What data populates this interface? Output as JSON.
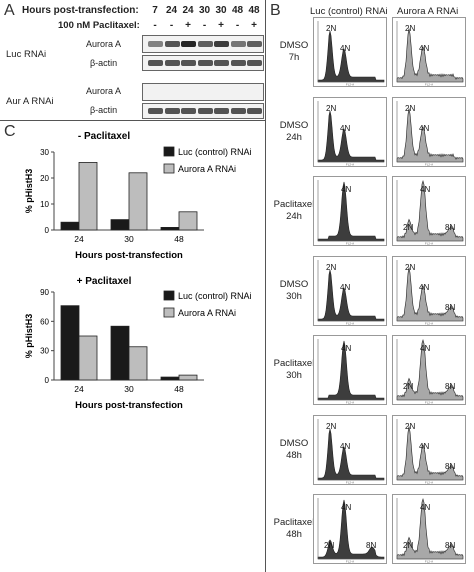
{
  "panels": {
    "a": "A",
    "b": "B",
    "c": "C"
  },
  "panel_a": {
    "hours_label": "Hours post-transfection:",
    "hours": [
      "7",
      "24",
      "24",
      "30",
      "30",
      "48",
      "48"
    ],
    "pac_label": "100 nM Paclitaxel:",
    "pac": [
      "-",
      "-",
      "+",
      "-",
      "+",
      "-",
      "+"
    ],
    "group1_label": "Luc RNAi",
    "group2_label": "Aur A RNAi",
    "g1_rows": [
      "Aurora A",
      "β-actin"
    ],
    "g2_rows": [
      "Aurora A",
      "β-actin"
    ],
    "band_intensity": {
      "g1_aurora": [
        0.55,
        0.75,
        0.95,
        0.7,
        0.85,
        0.6,
        0.7
      ],
      "g1_actin": [
        0.75,
        0.75,
        0.75,
        0.75,
        0.75,
        0.75,
        0.75
      ],
      "g2_aurora": [
        0,
        0,
        0,
        0,
        0,
        0,
        0
      ],
      "g2_actin": [
        0.75,
        0.75,
        0.75,
        0.75,
        0.75,
        0.75,
        0.75
      ]
    }
  },
  "panel_b": {
    "col_headers": [
      "Luc (control) RNAi",
      "Aurora A RNAi"
    ],
    "axis_tiny": "FL2-A",
    "rows": [
      {
        "label": [
          "DMSO",
          "7h"
        ],
        "luc": {
          "peaks": [
            "2N",
            "4N"
          ]
        },
        "aur": {
          "peaks": [
            "2N",
            "4N"
          ]
        }
      },
      {
        "label": [
          "DMSO",
          "24h"
        ],
        "luc": {
          "peaks": [
            "2N",
            "4N"
          ]
        },
        "aur": {
          "peaks": [
            "2N",
            "4N"
          ]
        }
      },
      {
        "label": [
          "Paclitaxel",
          "24h"
        ],
        "luc": {
          "peaks": [
            "4N"
          ]
        },
        "aur": {
          "peaks": [
            "4N",
            "2N",
            "8N"
          ]
        }
      },
      {
        "label": [
          "DMSO",
          "30h"
        ],
        "luc": {
          "peaks": [
            "2N",
            "4N"
          ]
        },
        "aur": {
          "peaks": [
            "2N",
            "4N",
            "8N"
          ]
        }
      },
      {
        "label": [
          "Paclitaxel",
          "30h"
        ],
        "luc": {
          "peaks": [
            "4N"
          ]
        },
        "aur": {
          "peaks": [
            "4N",
            "2N",
            "8N"
          ]
        }
      },
      {
        "label": [
          "DMSO",
          "48h"
        ],
        "luc": {
          "peaks": [
            "2N",
            "4N"
          ]
        },
        "aur": {
          "peaks": [
            "2N",
            "4N",
            "8N"
          ]
        }
      },
      {
        "label": [
          "Paclitaxel",
          "48h"
        ],
        "luc": {
          "peaks": [
            "4N",
            "2N",
            "8N"
          ]
        },
        "aur": {
          "peaks": [
            "4N",
            "2N",
            "8N"
          ]
        }
      }
    ]
  },
  "chart_data": [
    {
      "type": "bar",
      "title": "- Paclitaxel",
      "categories": [
        "24",
        "30",
        "48"
      ],
      "xlabel": "Hours post-transfection",
      "ylabel": "% pHistH3",
      "ylim": [
        0,
        30
      ],
      "grid": false,
      "legend": "top-right",
      "series": [
        {
          "name": "Luc (control) RNAi",
          "color": "#1a1a1a",
          "values": [
            3,
            4,
            1
          ]
        },
        {
          "name": "Aurora A RNAi",
          "color": "#bdbdbd",
          "values": [
            26,
            22,
            7
          ]
        }
      ]
    },
    {
      "type": "bar",
      "title": "+ Paclitaxel",
      "categories": [
        "24",
        "30",
        "48"
      ],
      "xlabel": "Hours post-transfection",
      "ylabel": "% pHistH3",
      "ylim": [
        0,
        90
      ],
      "grid": false,
      "legend": "top-right",
      "series": [
        {
          "name": "Luc (control) RNAi",
          "color": "#1a1a1a",
          "values": [
            76,
            55,
            3
          ]
        },
        {
          "name": "Aurora A RNAi",
          "color": "#bdbdbd",
          "values": [
            45,
            34,
            5
          ]
        }
      ]
    }
  ]
}
